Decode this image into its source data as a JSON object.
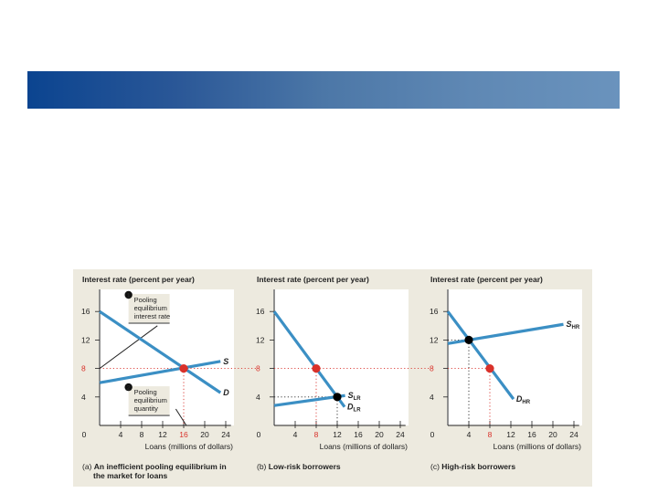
{
  "header": {
    "band_colors": [
      "#0b4490",
      "#6a93bd"
    ]
  },
  "colors": {
    "curve": "#3b8fc4",
    "equilibrium_pooling": "#d9312a",
    "equilibrium_separate": "#000000",
    "panel_bg": "#edeadf"
  },
  "chart_data": [
    {
      "type": "line",
      "panel": "a",
      "title": "",
      "caption_prefix": "(a)",
      "caption_line1": "An inefficient pooling equilibrium in",
      "caption_line2": "the market for loans",
      "ylabel": "Interest rate (percent per year)",
      "xlabel": "Loans (millions of dollars)",
      "xlim": [
        0,
        24
      ],
      "ylim": [
        0,
        18
      ],
      "xticks": [
        0,
        4,
        8,
        12,
        16,
        20,
        24
      ],
      "yticks": [
        4,
        8,
        12,
        16
      ],
      "highlight_xtick": 16,
      "highlight_ytick": 8,
      "series": [
        {
          "name": "D",
          "label": "D",
          "sub": "",
          "points": [
            [
              0,
              16
            ],
            [
              23,
              4.6
            ]
          ]
        },
        {
          "name": "S",
          "label": "S",
          "sub": "",
          "points": [
            [
              0,
              6
            ],
            [
              23,
              9
            ]
          ]
        }
      ],
      "equilibria": [
        {
          "x": 16,
          "y": 8,
          "kind": "pooling"
        }
      ],
      "callouts": [
        {
          "number": "1",
          "lines": [
            "Pooling",
            "equilibrium",
            "interest rate"
          ]
        },
        {
          "number": "2",
          "lines": [
            "Pooling",
            "equilibrium",
            "quantity"
          ]
        }
      ]
    },
    {
      "type": "line",
      "panel": "b",
      "caption_prefix": "(b)",
      "caption_line1": "Low-risk borrowers",
      "caption_line2": "",
      "ylabel": "Interest rate (percent per year)",
      "xlabel": "Loans (millions of dollars)",
      "xlim": [
        0,
        24
      ],
      "ylim": [
        0,
        18
      ],
      "xticks": [
        0,
        4,
        8,
        12,
        16,
        20,
        24
      ],
      "yticks": [
        4,
        8,
        12,
        16
      ],
      "highlight_xtick": 8,
      "highlight_ytick": 8,
      "series": [
        {
          "name": "D_LR",
          "label": "D",
          "sub": "LR",
          "points": [
            [
              0,
              16
            ],
            [
              13.4,
              2.6
            ]
          ]
        },
        {
          "name": "S_LR",
          "label": "S",
          "sub": "LR",
          "points": [
            [
              0,
              2.8
            ],
            [
              13.5,
              4.2
            ]
          ]
        }
      ],
      "equilibria": [
        {
          "x": 8,
          "y": 8,
          "kind": "pooling"
        },
        {
          "x": 12,
          "y": 4,
          "kind": "separate"
        }
      ]
    },
    {
      "type": "line",
      "panel": "c",
      "caption_prefix": "(c)",
      "caption_line1": "High-risk borrowers",
      "caption_line2": "",
      "ylabel": "Interest rate (percent per year)",
      "xlabel": "Loans (millions of dollars)",
      "xlim": [
        0,
        24
      ],
      "ylim": [
        0,
        18
      ],
      "xticks": [
        0,
        4,
        8,
        12,
        16,
        20,
        24
      ],
      "yticks": [
        4,
        8,
        12,
        16
      ],
      "highlight_xtick": 8,
      "highlight_ytick": 8,
      "series": [
        {
          "name": "D_HR",
          "label": "D",
          "sub": "HR",
          "points": [
            [
              0,
              16
            ],
            [
              12.5,
              3.7
            ]
          ]
        },
        {
          "name": "S_HR",
          "label": "S",
          "sub": "HR",
          "points": [
            [
              0,
              11.5
            ],
            [
              22,
              14.2
            ]
          ]
        }
      ],
      "equilibria": [
        {
          "x": 4,
          "y": 12,
          "kind": "separate"
        },
        {
          "x": 8,
          "y": 8,
          "kind": "pooling"
        }
      ]
    }
  ]
}
